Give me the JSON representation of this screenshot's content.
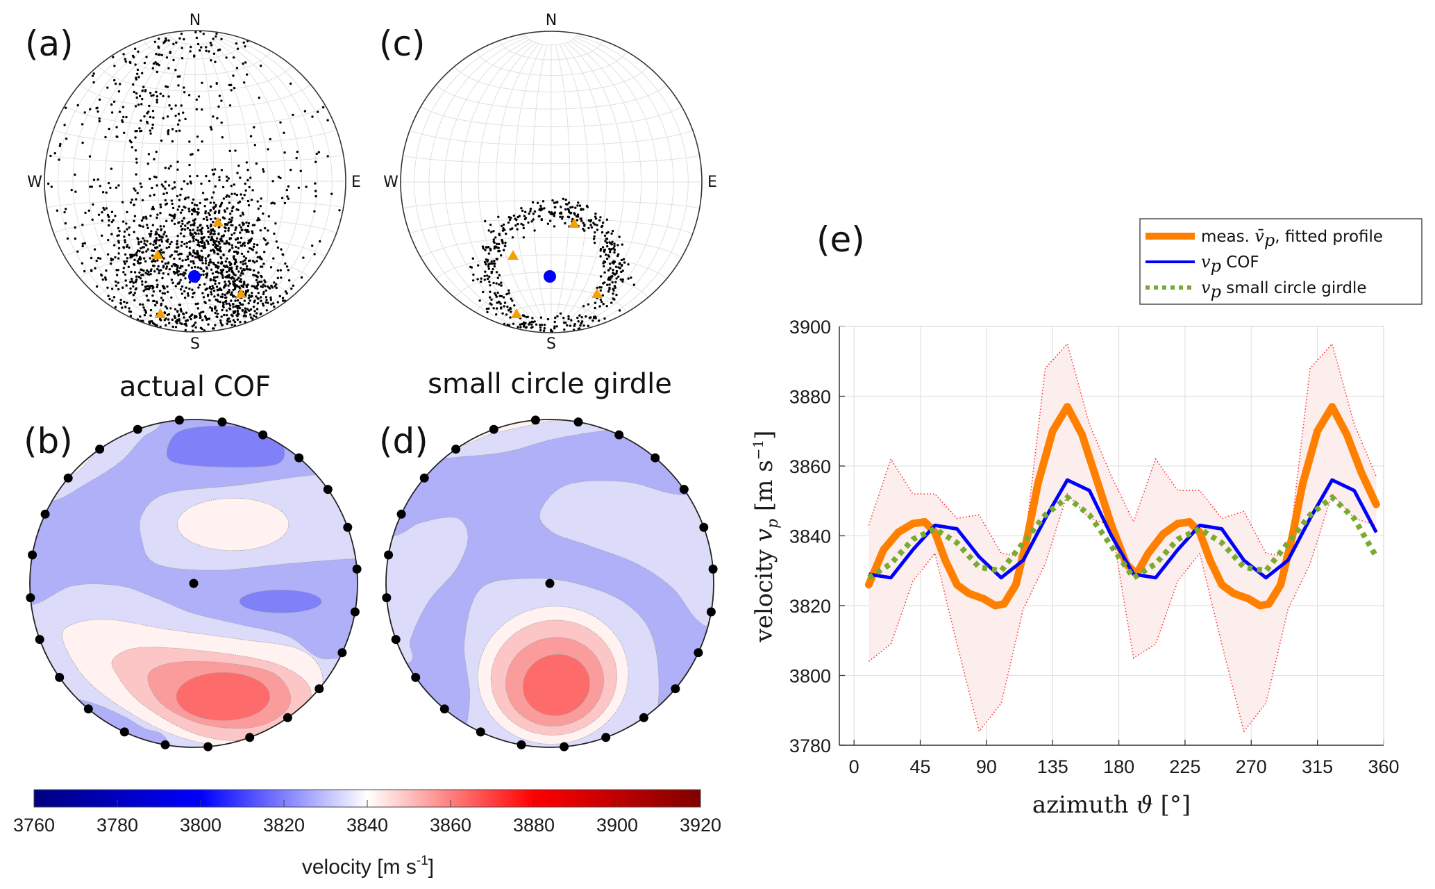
{
  "panels": {
    "a": {
      "label": "(a)",
      "compass": {
        "N": "N",
        "E": "E",
        "S": "S",
        "W": "W"
      },
      "title": "actual COF",
      "markers": {
        "mean_axis": "blue-dot",
        "cluster_centers": "orange-triangles"
      }
    },
    "b": {
      "label": "(b)"
    },
    "c": {
      "label": "(c)",
      "compass": {
        "N": "N",
        "E": "E",
        "S": "S",
        "W": "W"
      },
      "title": "small circle girdle",
      "markers": {
        "mean_axis": "blue-dot",
        "cluster_centers": "orange-triangles"
      }
    },
    "d": {
      "label": "(d)"
    },
    "e": {
      "label": "(e)"
    }
  },
  "colorbar": {
    "title": "velocity [m s",
    "title_superscript": "-1",
    "title_close": "]",
    "min": 3760,
    "max": 3920,
    "ticks": [
      "3760",
      "3780",
      "3800",
      "3820",
      "3840",
      "3860",
      "3880",
      "3900",
      "3920"
    ],
    "colormap": [
      "#00007f",
      "#0000ff",
      "#ffffff",
      "#ff0000",
      "#7f0000"
    ]
  },
  "contour_levels": {
    "colors": {
      "dark_blue": "#8080f8",
      "mid_blue": "#b0b0f8",
      "light_blue": "#dcdcfa",
      "pale_pink": "#fff2f0",
      "light_pink": "#fcc6c6",
      "pink": "#fb9c9c",
      "red": "#fd6b6b"
    }
  },
  "colors": {
    "orange": "#ff8000",
    "blue": "#0000ff",
    "green": "#77ac30",
    "envelope_line": "#ff3030",
    "envelope_fill": "#fdeeee",
    "grid": "#e0e0e0",
    "triangle": "#f5a000"
  },
  "chart_data": {
    "type": "line",
    "title": "",
    "xlabel": "azimuth ϑ [°]",
    "xlabel_parts": {
      "word": "azimuth ",
      "symbol": "ϑ",
      "unit": " [°]"
    },
    "ylabel": "velocity v_p [m s^-1]",
    "ylabel_parts": {
      "word": "velocity ",
      "symbol": "v",
      "sub": "p",
      "unit": " [m s",
      "sup": "−1",
      "close": "]"
    },
    "xlim": [
      -10,
      360
    ],
    "ylim": [
      3780,
      3900
    ],
    "xticks": [
      0,
      45,
      90,
      135,
      180,
      225,
      270,
      315,
      360
    ],
    "yticks": [
      3780,
      3800,
      3820,
      3840,
      3860,
      3880,
      3900
    ],
    "grid": true,
    "legend_position": "top-right-outside",
    "legend": [
      {
        "series": "meas",
        "text_pre": "meas. ",
        "math": "v̄",
        "sub": "p",
        "text_post": ", fitted profile"
      },
      {
        "series": "cof",
        "text_pre": "",
        "math": "v",
        "sub": "p",
        "text_post": " COF"
      },
      {
        "series": "girdle",
        "text_pre": "",
        "math": "v",
        "sub": "p",
        "text_post": " small circle girdle"
      }
    ],
    "envelope": {
      "name": "measurement range",
      "x": [
        10,
        25,
        40,
        55,
        70,
        85,
        100,
        115,
        130,
        145,
        160,
        175,
        190,
        205,
        220,
        235,
        250,
        265,
        280,
        295,
        310,
        325,
        340,
        355
      ],
      "upper": [
        3843,
        3862,
        3852,
        3852,
        3845,
        3846,
        3835,
        3834,
        3888,
        3895,
        3872,
        3857,
        3844,
        3862,
        3853,
        3853,
        3845,
        3847,
        3835,
        3834,
        3888,
        3895,
        3872,
        3857
      ],
      "lower": [
        3804,
        3809,
        3827,
        3835,
        3809,
        3784,
        3792,
        3819,
        3832,
        3852,
        3845,
        3843,
        3805,
        3809,
        3827,
        3835,
        3809,
        3784,
        3792,
        3819,
        3832,
        3852,
        3845,
        3843
      ]
    },
    "series": [
      {
        "name": "meas",
        "label": "meas. v̄p, fitted profile",
        "style": "thick-solid",
        "x": [
          10,
          20,
          30,
          40,
          48,
          55,
          62,
          70,
          78,
          88,
          96,
          102,
          110,
          118,
          125,
          135,
          145,
          155,
          165,
          175,
          185,
          192,
          200,
          210,
          220,
          228,
          235,
          242,
          250,
          258,
          268,
          276,
          282,
          290,
          298,
          305,
          315,
          325,
          335,
          345,
          355
        ],
        "values": [
          3826,
          3836,
          3841,
          3843.5,
          3844,
          3841,
          3833,
          3826,
          3823.5,
          3822,
          3820,
          3820.5,
          3826,
          3840,
          3855,
          3870,
          3877,
          3869,
          3856,
          3843,
          3832,
          3829,
          3835,
          3840.5,
          3843.5,
          3844,
          3841,
          3833,
          3826,
          3823.5,
          3822,
          3820,
          3820.5,
          3826,
          3840,
          3855,
          3870,
          3877,
          3869,
          3858,
          3849
        ]
      },
      {
        "name": "cof",
        "label": "vp COF",
        "style": "solid",
        "x": [
          10,
          25,
          40,
          55,
          70,
          85,
          100,
          115,
          130,
          145,
          160,
          175,
          190,
          205,
          220,
          235,
          250,
          265,
          280,
          295,
          310,
          325,
          340,
          355
        ],
        "values": [
          3829,
          3828,
          3836,
          3843,
          3842,
          3834,
          3828,
          3833,
          3845,
          3856,
          3853,
          3840,
          3829,
          3828,
          3836,
          3843,
          3842,
          3833,
          3828,
          3833,
          3845,
          3856,
          3853,
          3841
        ]
      },
      {
        "name": "girdle",
        "label": "vp small circle girdle",
        "style": "dotted",
        "x": [
          10,
          25,
          40,
          55,
          70,
          85,
          100,
          115,
          130,
          145,
          160,
          175,
          190,
          205,
          220,
          235,
          250,
          265,
          280,
          295,
          310,
          325,
          340,
          355
        ],
        "values": [
          3828,
          3832,
          3839,
          3842,
          3838,
          3831,
          3830,
          3838,
          3846,
          3851,
          3846,
          3837,
          3828,
          3832,
          3839,
          3842,
          3838,
          3831,
          3830,
          3838,
          3846,
          3851,
          3845,
          3834
        ]
      }
    ]
  }
}
